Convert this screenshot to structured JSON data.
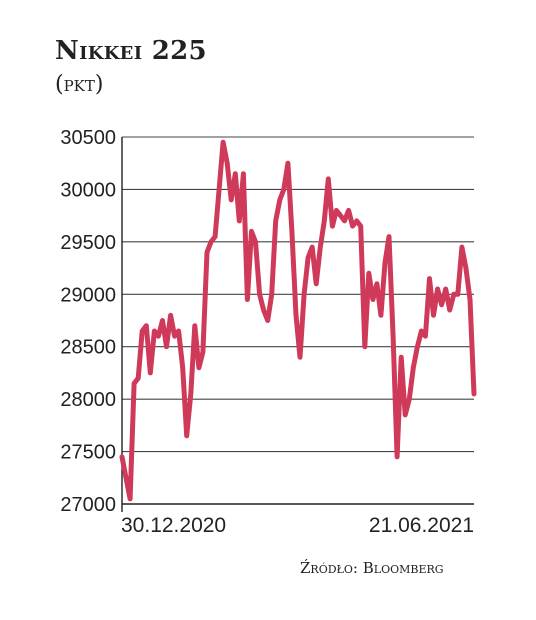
{
  "chart_data": {
    "type": "line",
    "title": "Nikkei 225",
    "subtitle": "(pkt)",
    "source": "Źródło: Bloomberg",
    "ylim": [
      27000,
      30500
    ],
    "y_ticks": [
      "30500",
      "30000",
      "29500",
      "29000",
      "28500",
      "28000",
      "27500",
      "27000"
    ],
    "x_tick_labels": [
      "30.12.2020",
      "21.06.2021"
    ],
    "grid": true,
    "series": [
      {
        "color": "#d03a5a",
        "values": [
          27450,
          27250,
          27050,
          28150,
          28200,
          28650,
          28700,
          28250,
          28650,
          28600,
          28750,
          28500,
          28800,
          28600,
          28650,
          28300,
          27650,
          28050,
          28700,
          28300,
          28450,
          29400,
          29500,
          29550,
          30000,
          30450,
          30250,
          29900,
          30150,
          29700,
          30150,
          28950,
          29600,
          29500,
          29000,
          28850,
          28750,
          29000,
          29700,
          29900,
          30000,
          30250,
          29600,
          28800,
          28400,
          29000,
          29350,
          29450,
          29100,
          29450,
          29700,
          30100,
          29650,
          29800,
          29750,
          29700,
          29800,
          29650,
          29700,
          29650,
          28500,
          29200,
          28950,
          29100,
          28800,
          29300,
          29550,
          28600,
          27450,
          28400,
          27850,
          28000,
          28300,
          28500,
          28650,
          28600,
          29150,
          28800,
          29050,
          28900,
          29050,
          28850,
          29000,
          29000,
          29450,
          29250,
          28950,
          28050
        ]
      }
    ]
  }
}
